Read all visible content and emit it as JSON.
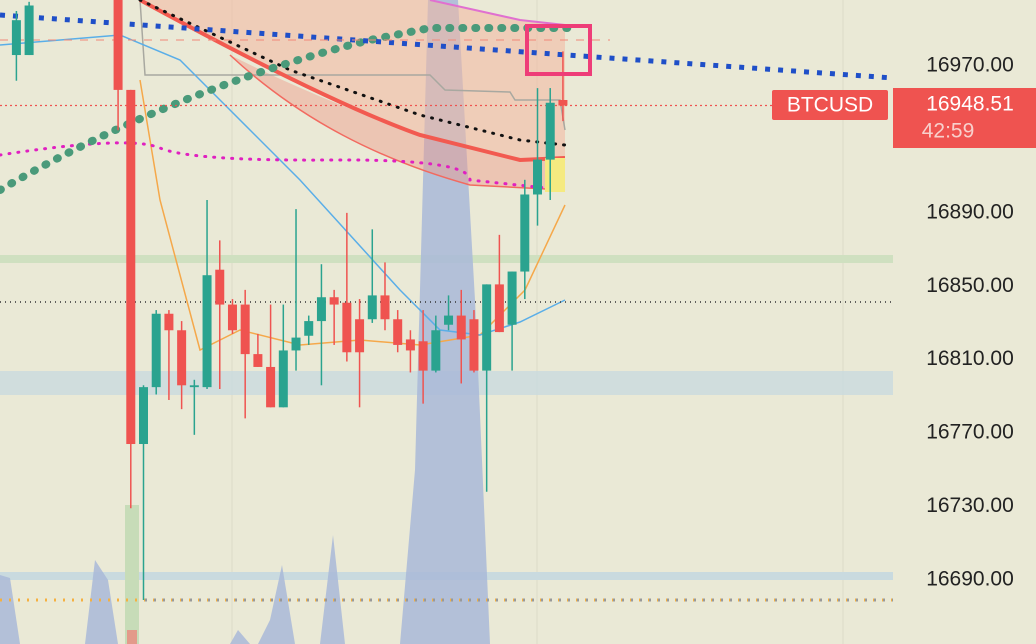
{
  "chart_data": {
    "type": "candlestick",
    "symbol": "BTCUSD",
    "last_price": {
      "value": 16948.51,
      "label": "16948.51"
    },
    "countdown": "42:59",
    "up_color": "#2aa38f",
    "down_color": "#ef5350",
    "ylim": [
      16655,
      17006
    ],
    "yticks": [
      {
        "value": 16970,
        "label": "16970.00"
      },
      {
        "value": 16890,
        "label": "16890.00"
      },
      {
        "value": 16850,
        "label": "16850.00"
      },
      {
        "value": 16810,
        "label": "16810.00"
      },
      {
        "value": 16770,
        "label": "16770.00"
      },
      {
        "value": 16730,
        "label": "16730.00"
      },
      {
        "value": 16690,
        "label": "16690.00"
      }
    ],
    "open": [
      16976,
      16976,
      null,
      null,
      null,
      null,
      null,
      null,
      17006,
      16957,
      16764,
      16795,
      16835,
      16826,
      16795,
      16795,
      16859,
      16840,
      16840,
      16813,
      16806,
      16784,
      16815,
      16823,
      16831,
      16844,
      16841,
      16832,
      16832,
      16845,
      16832,
      16821,
      16820,
      16804,
      16829,
      16834,
      16832,
      16804,
      16851,
      16829,
      16858,
      16900,
      16919,
      16951.5
    ],
    "high": [
      17000,
      17005,
      null,
      null,
      null,
      null,
      null,
      null,
      17006,
      16957,
      16796,
      16837,
      16837,
      16831,
      16799,
      16897,
      16875,
      16843,
      16848,
      16824,
      16840,
      16840,
      16892,
      16834,
      16862,
      16848,
      16890,
      16843,
      16881,
      16863,
      16837,
      16826,
      16837,
      16834,
      16845,
      16848,
      16837,
      16851,
      16878,
      16858,
      16908,
      16958,
      16958,
      16978
    ],
    "low": [
      16962,
      16976,
      null,
      null,
      null,
      null,
      null,
      null,
      16935,
      16729,
      16679,
      16791,
      16788,
      16783,
      16769,
      16794,
      16794,
      16824,
      16778,
      16806,
      16784,
      16784,
      16804,
      16818,
      16796,
      16818,
      16809,
      16784,
      16830,
      16826,
      16814,
      16803,
      16786,
      16803,
      16826,
      16797,
      16803,
      16738,
      16825,
      16804,
      16843,
      16883,
      16897,
      16940
    ],
    "close": [
      16995,
      17003,
      null,
      null,
      null,
      null,
      null,
      null,
      16957,
      16764,
      16795,
      16835,
      16826,
      16796,
      16796,
      16856,
      16840,
      16826,
      16813,
      16806,
      16784,
      16815,
      16822,
      16831,
      16844,
      16840,
      16814,
      16814,
      16845,
      16832,
      16818,
      16815,
      16804,
      16826,
      16834,
      16821,
      16804,
      16851,
      16825,
      16858,
      16900,
      16919,
      16950,
      16948.51
    ]
  }
}
